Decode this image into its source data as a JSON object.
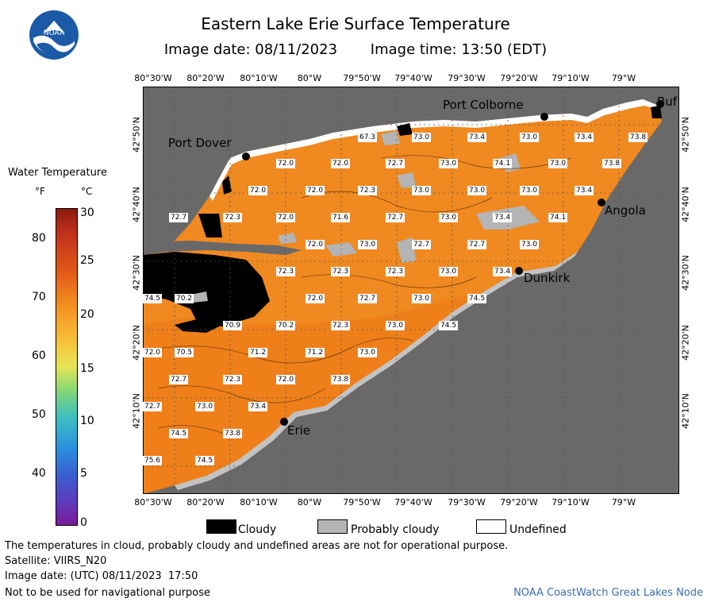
{
  "header": {
    "title": "Eastern Lake Erie Surface Temperature",
    "image_date": "Image date: 08/11/2023",
    "image_time": "Image time: 13:50 (EDT)"
  },
  "logo": {
    "text": "NOAA"
  },
  "colorbar": {
    "title": "Water Temperature",
    "unit_f": "°F",
    "unit_c": "°C",
    "f_ticks": [
      "80",
      "70",
      "60",
      "50",
      "40"
    ],
    "c_ticks": [
      "30",
      "25",
      "20",
      "15",
      "10",
      "5",
      "0"
    ]
  },
  "axes": {
    "lon_ticks": [
      "80°30'W",
      "80°20'W",
      "80°10'W",
      "80°W",
      "79°50'W",
      "79°40'W",
      "79°30'W",
      "79°20'W",
      "79°10'W",
      "79°W"
    ],
    "lat_ticks": [
      "42°50'N",
      "42°40'N",
      "42°30'N",
      "42°20'N",
      "42°10'N"
    ]
  },
  "places": [
    {
      "name": "Port Colborne"
    },
    {
      "name": "Port Dover"
    },
    {
      "name": "Angola"
    },
    {
      "name": "Dunkirk"
    },
    {
      "name": "Erie"
    },
    {
      "name": "Buf"
    }
  ],
  "temps": [
    "67.3",
    "73.0",
    "73.4",
    "73.0",
    "73.4",
    "73.8",
    "72.0",
    "72.0",
    "72.7",
    "73.0",
    "74.1",
    "73.0",
    "73.8",
    "72.0",
    "72.0",
    "72.3",
    "73.0",
    "73.0",
    "73.0",
    "73.4",
    "72.7",
    "72.3",
    "72.0",
    "71.6",
    "72.7",
    "73.0",
    "73.4",
    "74.1",
    "72.0",
    "73.0",
    "72.7",
    "72.7",
    "73.0",
    "72.3",
    "72.3",
    "72.3",
    "73.0",
    "73.4",
    "74.5",
    "70.2",
    "72.0",
    "72.7",
    "73.0",
    "74.5",
    "70.9",
    "70.2",
    "72.3",
    "73.0",
    "74.5",
    "72.0",
    "70.5",
    "71.2",
    "71.2",
    "73.0",
    "72.7",
    "72.3",
    "72.0",
    "73.8",
    "72.7",
    "73.0",
    "73.4",
    "74.5",
    "73.8",
    "75.6",
    "74.5"
  ],
  "legend": {
    "cloudy": "Cloudy",
    "probably_cloudy": "Probably cloudy",
    "undefined": "Undefined"
  },
  "colors": {
    "land": "#696969",
    "water": "#f0891f",
    "cloudy": "#000000",
    "probably_cloudy": "#b4b4b4",
    "undefined": "#ffffff"
  },
  "footer": {
    "disclaimer": "The temperatures in cloud, probably cloudy and undefined areas are not for operational purpose.",
    "satellite": "Satellite: VIIRS_N20",
    "utc_date": "Image date: (UTC) 08/11/2023  17:50",
    "nav_warning": "Not to be used for navigational purpose",
    "credit": "NOAA CoastWatch Great Lakes Node"
  }
}
